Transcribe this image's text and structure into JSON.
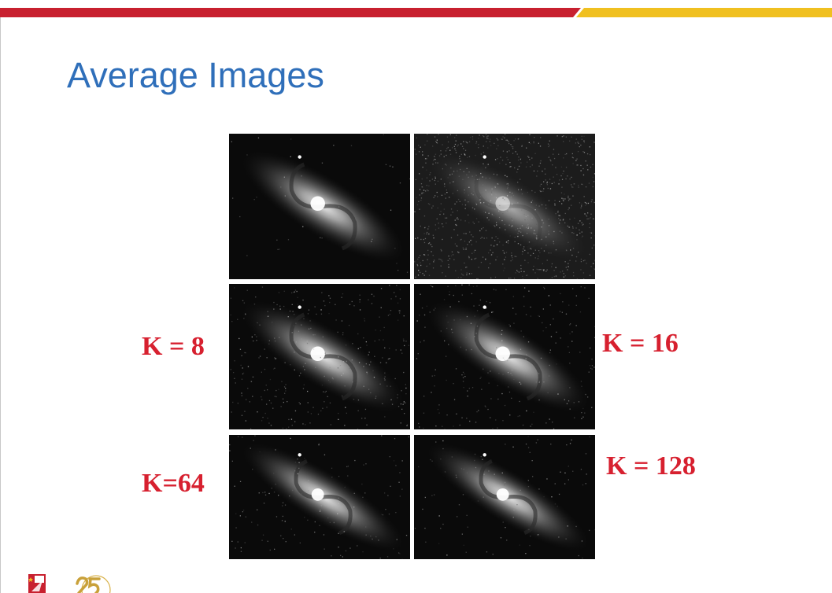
{
  "slide": {
    "title": "Average Images"
  },
  "theme": {
    "bar_red": "#c8202f",
    "bar_yellow": "#f0c020",
    "title_color": "#2f6fba",
    "label_color": "#d7202f"
  },
  "figure": {
    "panels": [
      {
        "id": "original",
        "noise": 0.0
      },
      {
        "id": "noisy",
        "noise": 1.0
      },
      {
        "id": "k8",
        "noise": 0.35
      },
      {
        "id": "k16",
        "noise": 0.25
      },
      {
        "id": "k64",
        "noise": 0.12
      },
      {
        "id": "k128",
        "noise": 0.08
      }
    ],
    "labels": {
      "k8": "K = 8",
      "k16": "K = 16",
      "k64": "K=64",
      "k128": "K = 128"
    }
  }
}
